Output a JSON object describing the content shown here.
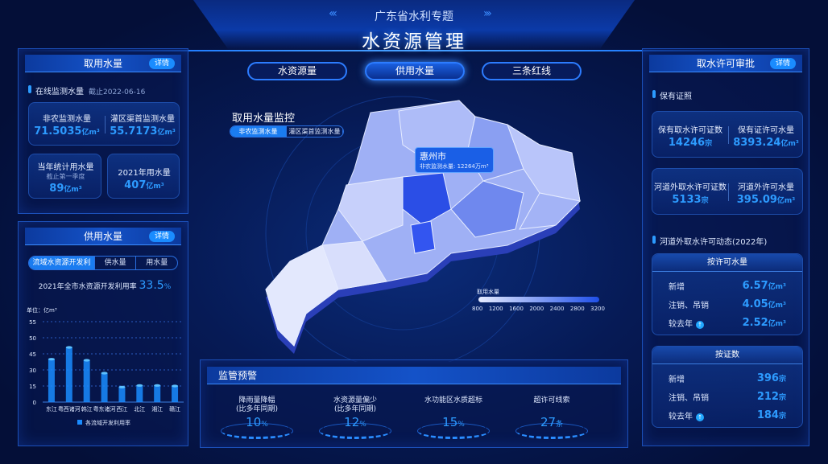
{
  "header": {
    "subtitle": "广东省水利专题",
    "title": "水资源管理"
  },
  "center_tabs": [
    {
      "label": "水资源量",
      "active": false
    },
    {
      "label": "供用水量",
      "active": true
    },
    {
      "label": "三条红线",
      "active": false
    }
  ],
  "left_top": {
    "title": "取用水量",
    "detail": "详情",
    "section": "在线监测水量",
    "section_date": "截止2022-06-16",
    "card1": [
      {
        "label": "非农监测水量",
        "value": "71.5035",
        "unit": "亿m³"
      },
      {
        "label": "灌区渠首监测水量",
        "value": "55.7173",
        "unit": "亿m³"
      }
    ],
    "card2": {
      "label": "当年统计用水量",
      "note": "截止第一季度",
      "value": "89",
      "unit": "亿m³"
    },
    "card3": {
      "label": "2021年用水量",
      "value": "407",
      "unit": "亿m³"
    }
  },
  "left_bottom": {
    "title": "供用水量",
    "detail": "详情",
    "tabs": [
      {
        "label": "流域水资源开发利用",
        "active": true
      },
      {
        "label": "供水量",
        "active": false
      },
      {
        "label": "用水量",
        "active": false
      }
    ],
    "rate_label": "2021年全市水资源开发利用率",
    "rate_value": "33.5",
    "rate_unit": "%"
  },
  "chart_data": {
    "type": "bar",
    "ylabel": "单位：亿m³",
    "yticks": [
      0,
      15,
      30,
      45,
      50,
      55
    ],
    "ylim": [
      0,
      55
    ],
    "grid": true,
    "categories": [
      "东江",
      "粤西诸河",
      "韩江",
      "粤东诸河",
      "西江",
      "北江",
      "湘江",
      "赣江"
    ],
    "series": [
      {
        "name": "各流域开发利用率",
        "values": [
          40,
          47,
          39,
          27,
          14,
          15.5,
          15.5,
          15
        ]
      }
    ],
    "legend": "bottom",
    "color": "#1a8cff"
  },
  "map": {
    "title": "取用水量监控",
    "toggle": [
      {
        "label": "非农监测水量",
        "active": true
      },
      {
        "label": "灌区渠首监测水量",
        "active": false
      }
    ],
    "tooltip": {
      "city": "惠州市",
      "label": "非农监测水量:",
      "value": "12264",
      "unit": "万m³"
    },
    "legend": {
      "title": "取用水量",
      "ticks": [
        "800",
        "1200",
        "1600",
        "2000",
        "2400",
        "2800",
        "3200"
      ],
      "color_low": "#e6ecff",
      "color_high": "#1f4fe8"
    }
  },
  "warning": {
    "title": "监管预警",
    "items": [
      {
        "label": "降雨量降幅",
        "sub": "(比多年同期)",
        "value": "10",
        "unit": "%"
      },
      {
        "label": "水资源量偏少",
        "sub": "(比多年同期)",
        "value": "12",
        "unit": "%"
      },
      {
        "label": "水功能区水质超标",
        "sub": "",
        "value": "15",
        "unit": "%"
      },
      {
        "label": "超许可线索",
        "sub": "",
        "value": "27",
        "unit": "条"
      }
    ]
  },
  "right": {
    "title": "取水许可审批",
    "detail": "详情",
    "section1": "保有证照",
    "card1": [
      {
        "label": "保有取水许可证数",
        "value": "14246",
        "unit": "宗"
      },
      {
        "label": "保有证许可水量",
        "value": "8393.24",
        "unit": "亿m³"
      }
    ],
    "card2": [
      {
        "label": "河道外取水许可证数",
        "value": "5133",
        "unit": "宗"
      },
      {
        "label": "河道外许可水量",
        "value": "395.09",
        "unit": "亿m³"
      }
    ],
    "section2": "河道外取水许可动态(2022年)",
    "by_volume": {
      "title": "按许可水量",
      "rows": [
        {
          "label": "新增",
          "value": "6.57",
          "unit": "亿m³"
        },
        {
          "label": "注销、吊销",
          "value": "4.05",
          "unit": "亿m³"
        },
        {
          "label": "较去年",
          "value": "2.52",
          "unit": "亿m³",
          "trend": "up"
        }
      ]
    },
    "by_count": {
      "title": "按证数",
      "rows": [
        {
          "label": "新增",
          "value": "396",
          "unit": "宗"
        },
        {
          "label": "注销、吊销",
          "value": "212",
          "unit": "宗"
        },
        {
          "label": "较去年",
          "value": "184",
          "unit": "宗",
          "trend": "up"
        }
      ]
    }
  }
}
